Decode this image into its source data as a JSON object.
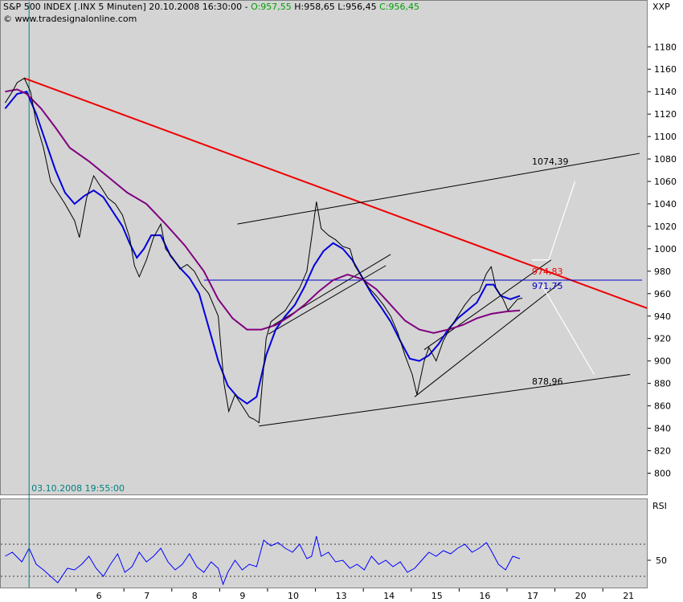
{
  "header": {
    "title": "S&P 500 INDEX [.INX",
    "interval": "5 Minuten]",
    "datetime": "20.10.2008 16:30:00",
    "open_label": "O:957,55",
    "high_label": "H:958,65",
    "low_label": "L:956,45",
    "close_label": "C:956,45",
    "source": "© www.tradesignalonline.com",
    "symbol": "XXP"
  },
  "rsi_panel": {
    "title": "RSI",
    "level_label": "50",
    "upper_band": 70,
    "lower_band": 30
  },
  "colors": {
    "price": "#000000",
    "ma_fast": "#0000dd",
    "ma_slow": "#800080",
    "downtrend": "#ee0000",
    "channel": "#000000",
    "support_line": "#0000cc",
    "projection": "#ffffff",
    "rsi": "#0000ff",
    "cursor": "#008080"
  },
  "chart_data": {
    "type": "line",
    "title": "S&P 500 INDEX [.INX 5 Minuten]",
    "xlabel": "",
    "ylabel": "",
    "ylim": [
      780,
      1200
    ],
    "y_ticks": [
      800,
      820,
      840,
      860,
      880,
      900,
      920,
      940,
      960,
      980,
      1000,
      1020,
      1040,
      1060,
      1080,
      1100,
      1120,
      1140,
      1160,
      1180
    ],
    "x_ticks": [
      {
        "label": "6",
        "t": 1
      },
      {
        "label": "7",
        "t": 2
      },
      {
        "label": "8",
        "t": 3
      },
      {
        "label": "9",
        "t": 4
      },
      {
        "label": "10",
        "t": 5
      },
      {
        "label": "13",
        "t": 6
      },
      {
        "label": "14",
        "t": 7
      },
      {
        "label": "15",
        "t": 8
      },
      {
        "label": "16",
        "t": 9
      },
      {
        "label": "17",
        "t": 10
      },
      {
        "label": "20",
        "t": 11
      },
      {
        "label": "21",
        "t": 12
      }
    ],
    "grid": false,
    "cursor": {
      "t": -0.45,
      "label": "03.10.2008 19:55:00"
    },
    "series": [
      {
        "name": "",
        "style": "price",
        "points": [
          [
            -0.95,
            1130
          ],
          [
            -0.8,
            1140
          ],
          [
            -0.7,
            1148
          ],
          [
            -0.55,
            1152
          ],
          [
            -0.42,
            1140
          ],
          [
            -0.3,
            1112
          ],
          [
            -0.15,
            1090
          ],
          [
            0.0,
            1060
          ],
          [
            0.15,
            1050
          ],
          [
            0.3,
            1040
          ],
          [
            0.5,
            1025
          ],
          [
            0.6,
            1010
          ],
          [
            0.75,
            1045
          ],
          [
            0.9,
            1065
          ],
          [
            1.05,
            1055
          ],
          [
            1.2,
            1045
          ],
          [
            1.35,
            1040
          ],
          [
            1.5,
            1030
          ],
          [
            1.65,
            1010
          ],
          [
            1.75,
            985
          ],
          [
            1.85,
            975
          ],
          [
            2.0,
            990
          ],
          [
            2.15,
            1010
          ],
          [
            2.3,
            1022
          ],
          [
            2.4,
            1000
          ],
          [
            2.55,
            992
          ],
          [
            2.7,
            982
          ],
          [
            2.85,
            986
          ],
          [
            3.0,
            980
          ],
          [
            3.15,
            968
          ],
          [
            3.3,
            960
          ],
          [
            3.5,
            940
          ],
          [
            3.62,
            880
          ],
          [
            3.72,
            855
          ],
          [
            3.85,
            870
          ],
          [
            4.0,
            860
          ],
          [
            4.15,
            850
          ],
          [
            4.25,
            848
          ],
          [
            4.35,
            845
          ],
          [
            4.5,
            920
          ],
          [
            4.6,
            935
          ],
          [
            4.75,
            940
          ],
          [
            4.9,
            945
          ],
          [
            5.05,
            955
          ],
          [
            5.2,
            965
          ],
          [
            5.35,
            980
          ],
          [
            5.45,
            1010
          ],
          [
            5.55,
            1042
          ],
          [
            5.65,
            1018
          ],
          [
            5.8,
            1012
          ],
          [
            5.95,
            1008
          ],
          [
            6.1,
            1002
          ],
          [
            6.25,
            1000
          ],
          [
            6.35,
            985
          ],
          [
            6.5,
            975
          ],
          [
            6.65,
            965
          ],
          [
            6.8,
            958
          ],
          [
            6.95,
            950
          ],
          [
            7.1,
            940
          ],
          [
            7.25,
            925
          ],
          [
            7.4,
            905
          ],
          [
            7.55,
            888
          ],
          [
            7.65,
            870
          ],
          [
            7.8,
            900
          ],
          [
            7.9,
            912
          ],
          [
            8.05,
            900
          ],
          [
            8.2,
            918
          ],
          [
            8.35,
            930
          ],
          [
            8.5,
            940
          ],
          [
            8.65,
            950
          ],
          [
            8.8,
            958
          ],
          [
            8.95,
            962
          ],
          [
            9.1,
            978
          ],
          [
            9.2,
            984
          ],
          [
            9.3,
            965
          ],
          [
            9.45,
            955
          ],
          [
            9.55,
            945
          ],
          [
            9.65,
            950
          ],
          [
            9.75,
            955
          ],
          [
            9.85,
            956
          ]
        ]
      },
      {
        "name": "",
        "style": "ma_fast",
        "points": [
          [
            -0.95,
            1125
          ],
          [
            -0.7,
            1138
          ],
          [
            -0.5,
            1140
          ],
          [
            -0.3,
            1120
          ],
          [
            -0.1,
            1095
          ],
          [
            0.1,
            1070
          ],
          [
            0.3,
            1050
          ],
          [
            0.5,
            1040
          ],
          [
            0.7,
            1047
          ],
          [
            0.9,
            1052
          ],
          [
            1.1,
            1046
          ],
          [
            1.3,
            1033
          ],
          [
            1.5,
            1020
          ],
          [
            1.65,
            1005
          ],
          [
            1.8,
            992
          ],
          [
            1.95,
            1000
          ],
          [
            2.1,
            1012
          ],
          [
            2.3,
            1012
          ],
          [
            2.5,
            994
          ],
          [
            2.7,
            983
          ],
          [
            2.9,
            974
          ],
          [
            3.1,
            960
          ],
          [
            3.3,
            930
          ],
          [
            3.5,
            900
          ],
          [
            3.7,
            878
          ],
          [
            3.9,
            868
          ],
          [
            4.1,
            862
          ],
          [
            4.3,
            868
          ],
          [
            4.5,
            905
          ],
          [
            4.7,
            928
          ],
          [
            4.9,
            940
          ],
          [
            5.1,
            950
          ],
          [
            5.3,
            966
          ],
          [
            5.5,
            985
          ],
          [
            5.7,
            998
          ],
          [
            5.9,
            1005
          ],
          [
            6.1,
            1000
          ],
          [
            6.3,
            990
          ],
          [
            6.5,
            975
          ],
          [
            6.7,
            960
          ],
          [
            6.9,
            948
          ],
          [
            7.1,
            935
          ],
          [
            7.3,
            918
          ],
          [
            7.5,
            902
          ],
          [
            7.7,
            900
          ],
          [
            7.9,
            905
          ],
          [
            8.1,
            915
          ],
          [
            8.3,
            928
          ],
          [
            8.5,
            938
          ],
          [
            8.7,
            945
          ],
          [
            8.9,
            952
          ],
          [
            9.1,
            968
          ],
          [
            9.25,
            968
          ],
          [
            9.4,
            958
          ],
          [
            9.6,
            955
          ],
          [
            9.8,
            958
          ]
        ]
      },
      {
        "name": "",
        "style": "ma_slow",
        "points": [
          [
            -0.95,
            1140
          ],
          [
            -0.7,
            1142
          ],
          [
            -0.5,
            1138
          ],
          [
            -0.2,
            1125
          ],
          [
            0.1,
            1108
          ],
          [
            0.4,
            1090
          ],
          [
            0.8,
            1078
          ],
          [
            1.2,
            1064
          ],
          [
            1.6,
            1050
          ],
          [
            2.0,
            1040
          ],
          [
            2.4,
            1022
          ],
          [
            2.8,
            1003
          ],
          [
            3.2,
            980
          ],
          [
            3.5,
            955
          ],
          [
            3.8,
            938
          ],
          [
            4.1,
            928
          ],
          [
            4.4,
            928
          ],
          [
            4.7,
            932
          ],
          [
            5.0,
            940
          ],
          [
            5.3,
            950
          ],
          [
            5.6,
            962
          ],
          [
            5.9,
            972
          ],
          [
            6.2,
            977
          ],
          [
            6.5,
            973
          ],
          [
            6.8,
            964
          ],
          [
            7.1,
            950
          ],
          [
            7.4,
            936
          ],
          [
            7.7,
            928
          ],
          [
            8.0,
            925
          ],
          [
            8.3,
            928
          ],
          [
            8.6,
            932
          ],
          [
            8.9,
            938
          ],
          [
            9.2,
            942
          ],
          [
            9.5,
            944
          ],
          [
            9.8,
            945
          ]
        ]
      }
    ],
    "lines": [
      {
        "style": "downtrend",
        "from": [
          -0.55,
          1152
        ],
        "to": [
          12.9,
          940
        ]
      },
      {
        "style": "channel",
        "from": [
          3.9,
          1022
        ],
        "to": [
          12.3,
          1085
        ]
      },
      {
        "style": "channel",
        "from": [
          4.35,
          842
        ],
        "to": [
          12.1,
          888
        ]
      },
      {
        "style": "channel",
        "from": [
          4.65,
          932
        ],
        "to": [
          7.1,
          995
        ]
      },
      {
        "style": "channel",
        "from": [
          4.55,
          924
        ],
        "to": [
          7.0,
          985
        ]
      },
      {
        "style": "channel",
        "from": [
          7.6,
          868
        ],
        "to": [
          10.65,
          970
        ]
      },
      {
        "style": "channel",
        "from": [
          7.8,
          910
        ],
        "to": [
          10.45,
          990
        ]
      },
      {
        "style": "support_line",
        "from": [
          3.2,
          972
        ],
        "to": [
          12.35,
          972
        ]
      }
    ],
    "projections": [
      [
        [
          10.05,
          990
        ],
        [
          10.4,
          990
        ],
        [
          10.95,
          1060
        ]
      ],
      [
        [
          10.25,
          968
        ],
        [
          11.35,
          888
        ]
      ]
    ],
    "annotations": [
      {
        "text": "1074,39",
        "t": 10.05,
        "v": 1075,
        "color": "#000000"
      },
      {
        "text": "974,83",
        "t": 10.05,
        "v": 977,
        "color": "#ee0000"
      },
      {
        "text": "971,75",
        "t": 10.05,
        "v": 964,
        "color": "#0000cc"
      },
      {
        "text": "878,96",
        "t": 10.05,
        "v": 879,
        "color": "#000000"
      }
    ],
    "rsi": {
      "ylim": [
        0,
        100
      ],
      "band_upper": 70,
      "band_lower": 30,
      "points": [
        [
          -0.95,
          55
        ],
        [
          -0.8,
          60
        ],
        [
          -0.6,
          48
        ],
        [
          -0.45,
          65
        ],
        [
          -0.3,
          45
        ],
        [
          -0.15,
          38
        ],
        [
          0.0,
          30
        ],
        [
          0.15,
          22
        ],
        [
          0.35,
          40
        ],
        [
          0.5,
          38
        ],
        [
          0.65,
          45
        ],
        [
          0.8,
          55
        ],
        [
          0.95,
          40
        ],
        [
          1.1,
          30
        ],
        [
          1.25,
          45
        ],
        [
          1.4,
          58
        ],
        [
          1.55,
          35
        ],
        [
          1.7,
          42
        ],
        [
          1.85,
          60
        ],
        [
          2.0,
          48
        ],
        [
          2.15,
          55
        ],
        [
          2.3,
          65
        ],
        [
          2.45,
          48
        ],
        [
          2.6,
          38
        ],
        [
          2.75,
          45
        ],
        [
          2.9,
          58
        ],
        [
          3.05,
          42
        ],
        [
          3.2,
          35
        ],
        [
          3.35,
          48
        ],
        [
          3.5,
          40
        ],
        [
          3.6,
          20
        ],
        [
          3.7,
          35
        ],
        [
          3.85,
          50
        ],
        [
          4.0,
          38
        ],
        [
          4.15,
          45
        ],
        [
          4.3,
          42
        ],
        [
          4.45,
          75
        ],
        [
          4.6,
          68
        ],
        [
          4.75,
          72
        ],
        [
          4.9,
          65
        ],
        [
          5.05,
          60
        ],
        [
          5.2,
          70
        ],
        [
          5.35,
          52
        ],
        [
          5.45,
          55
        ],
        [
          5.55,
          80
        ],
        [
          5.65,
          55
        ],
        [
          5.8,
          60
        ],
        [
          5.95,
          48
        ],
        [
          6.1,
          50
        ],
        [
          6.25,
          40
        ],
        [
          6.4,
          45
        ],
        [
          6.55,
          38
        ],
        [
          6.7,
          55
        ],
        [
          6.85,
          45
        ],
        [
          7.0,
          50
        ],
        [
          7.15,
          42
        ],
        [
          7.3,
          48
        ],
        [
          7.45,
          35
        ],
        [
          7.6,
          40
        ],
        [
          7.75,
          50
        ],
        [
          7.9,
          60
        ],
        [
          8.05,
          55
        ],
        [
          8.2,
          62
        ],
        [
          8.35,
          58
        ],
        [
          8.5,
          65
        ],
        [
          8.65,
          70
        ],
        [
          8.8,
          60
        ],
        [
          8.95,
          65
        ],
        [
          9.1,
          72
        ],
        [
          9.2,
          62
        ],
        [
          9.35,
          45
        ],
        [
          9.5,
          38
        ],
        [
          9.65,
          55
        ],
        [
          9.8,
          52
        ]
      ]
    }
  }
}
